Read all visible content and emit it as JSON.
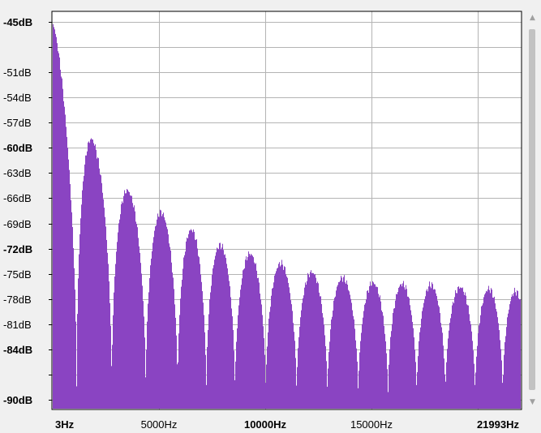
{
  "icons": {
    "scroll_up": "triangle-up-icon",
    "scroll_down": "triangle-down-icon"
  },
  "colors": {
    "spectrum_fill": "#8a44c2",
    "plot_background": "#ffffff",
    "grid": "#b4b4b4",
    "window_background": "#f0f0f0",
    "scrollbar_thumb": "#c2c2c2"
  },
  "chart_data": {
    "type": "area",
    "title": "",
    "xlabel": "",
    "ylabel": "",
    "grid": true,
    "xlim": [
      3,
      21993
    ],
    "ylim": [
      -91.5,
      -43.5
    ],
    "y_ticks": [
      {
        "value": -45,
        "label": "-45dB",
        "bold": true
      },
      {
        "value": -48,
        "label": "",
        "bold": false
      },
      {
        "value": -51,
        "label": "-51dB",
        "bold": false
      },
      {
        "value": -54,
        "label": "-54dB",
        "bold": false
      },
      {
        "value": -57,
        "label": "-57dB",
        "bold": false
      },
      {
        "value": -60,
        "label": "-60dB",
        "bold": true
      },
      {
        "value": -63,
        "label": "-63dB",
        "bold": false
      },
      {
        "value": -66,
        "label": "-66dB",
        "bold": false
      },
      {
        "value": -69,
        "label": "-69dB",
        "bold": false
      },
      {
        "value": -72,
        "label": "-72dB",
        "bold": true
      },
      {
        "value": -75,
        "label": "-75dB",
        "bold": false
      },
      {
        "value": -78,
        "label": "-78dB",
        "bold": false
      },
      {
        "value": -81,
        "label": "-81dB",
        "bold": false
      },
      {
        "value": -84,
        "label": "-84dB",
        "bold": true
      },
      {
        "value": -87,
        "label": "",
        "bold": false
      },
      {
        "value": -90,
        "label": "-90dB",
        "bold": true
      }
    ],
    "x_ticks": [
      {
        "value": 3,
        "label": "3Hz",
        "bold": true
      },
      {
        "value": 5000,
        "label": "5000Hz",
        "bold": false
      },
      {
        "value": 10000,
        "label": "10000Hz",
        "bold": true
      },
      {
        "value": 15000,
        "label": "15000Hz",
        "bold": false
      },
      {
        "value": 21993,
        "label": "21993Hz",
        "bold": true
      }
    ],
    "x_gridlines": [
      5000,
      10000,
      15000,
      20000
    ],
    "series": [
      {
        "peaks": [
          {
            "frequency": 0,
            "level": -44.8
          },
          {
            "frequency": 2100,
            "level": -60.4
          },
          {
            "frequency": 3700,
            "level": -65.5
          },
          {
            "frequency": 5200,
            "level": -67.8
          },
          {
            "frequency": 6600,
            "level": -69.8
          },
          {
            "frequency": 7900,
            "level": -71.6
          },
          {
            "frequency": 9300,
            "level": -72.6
          },
          {
            "frequency": 10800,
            "level": -73.8
          },
          {
            "frequency": 12200,
            "level": -74.8
          },
          {
            "frequency": 13700,
            "level": -75.5
          },
          {
            "frequency": 15100,
            "level": -76.1
          },
          {
            "frequency": 16500,
            "level": -76.2
          },
          {
            "frequency": 17800,
            "level": -76.3
          },
          {
            "frequency": 19200,
            "level": -76.6
          },
          {
            "frequency": 20600,
            "level": -76.8
          },
          {
            "frequency": 21800,
            "level": -77.1
          }
        ],
        "nulls": [
          1150,
          2800,
          4400,
          5900,
          7250,
          8600,
          10050,
          11500,
          12950,
          14400,
          15800,
          17150,
          18500,
          19900,
          21200
        ]
      }
    ]
  }
}
